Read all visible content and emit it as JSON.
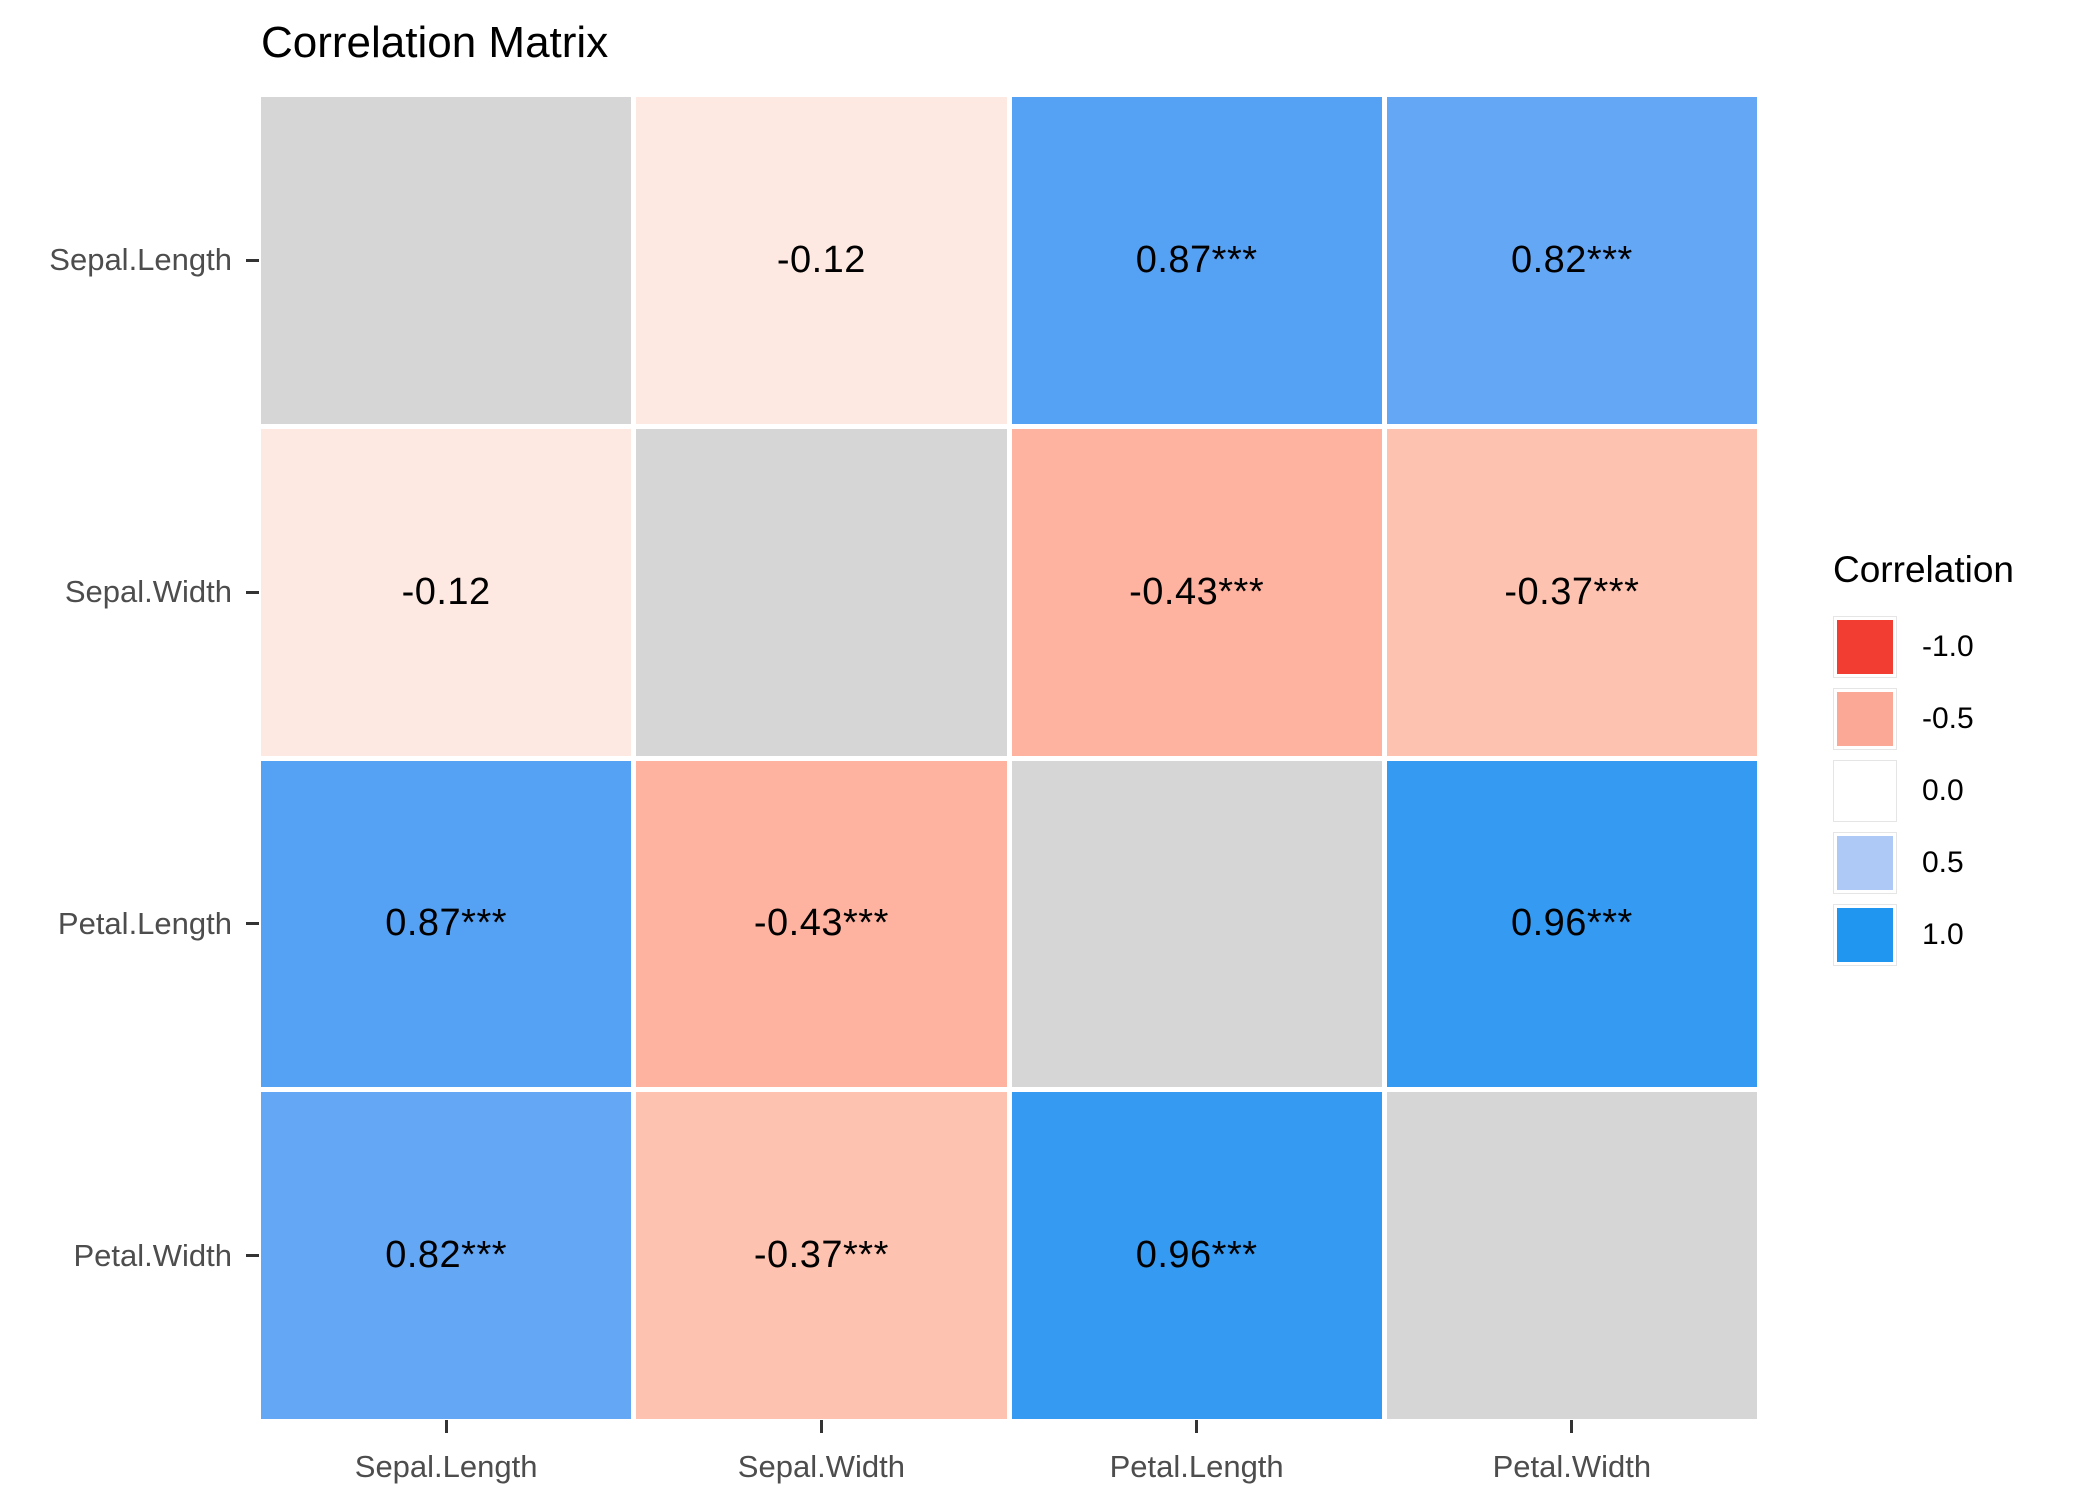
{
  "title": "Correlation Matrix",
  "chart_data": {
    "type": "heatmap",
    "title": "Correlation Matrix",
    "variables": [
      "Sepal.Length",
      "Sepal.Width",
      "Petal.Length",
      "Petal.Width"
    ],
    "x_axis_labels": [
      "Sepal.Length",
      "Sepal.Width",
      "Petal.Length",
      "Petal.Width"
    ],
    "y_axis_labels": [
      "Sepal.Length",
      "Sepal.Width",
      "Petal.Length",
      "Petal.Width"
    ],
    "matrix": [
      [
        null,
        -0.12,
        0.87,
        0.82
      ],
      [
        -0.12,
        null,
        -0.43,
        -0.37
      ],
      [
        0.87,
        -0.43,
        null,
        0.96
      ],
      [
        0.82,
        -0.37,
        0.96,
        null
      ]
    ],
    "cell_labels": [
      [
        "",
        "-0.12",
        "0.87***",
        "0.82***"
      ],
      [
        "-0.12",
        "",
        "-0.43***",
        "-0.37***"
      ],
      [
        "0.87***",
        "-0.43***",
        "",
        "0.96***"
      ],
      [
        "0.82***",
        "-0.37***",
        "0.96***",
        ""
      ]
    ],
    "color_matrix": [
      [
        "#D6D6D6",
        "#FDE9E2",
        "#55A1F3",
        "#64A7F5"
      ],
      [
        "#FDE9E2",
        "#D6D6D6",
        "#FEB3A1",
        "#FEC2B1"
      ],
      [
        "#55A1F3",
        "#FEB3A1",
        "#D6D6D6",
        "#359AF2"
      ],
      [
        "#64A7F5",
        "#FEC2B1",
        "#359AF2",
        "#D6D6D6"
      ]
    ],
    "diagonal_color": "#D6D6D6",
    "grid": false,
    "legend": {
      "title": "Correlation",
      "position": "right",
      "entries": [
        {
          "label": "-1.0",
          "value": -1.0,
          "color": "#F23D33"
        },
        {
          "label": "-0.5",
          "value": -0.5,
          "color": "#FCA896"
        },
        {
          "label": "0.0",
          "value": 0.0,
          "color": "#FFFFFF"
        },
        {
          "label": "0.5",
          "value": 0.5,
          "color": "#AEC9F6"
        },
        {
          "label": "1.0",
          "value": 1.0,
          "color": "#2196F0"
        }
      ]
    }
  },
  "styles": {
    "background": "#FFFFFF",
    "axis_text_color": "#4D4D4D",
    "tick_color": "#333333",
    "cell_text_color": "#000000",
    "title_color": "#000000"
  }
}
